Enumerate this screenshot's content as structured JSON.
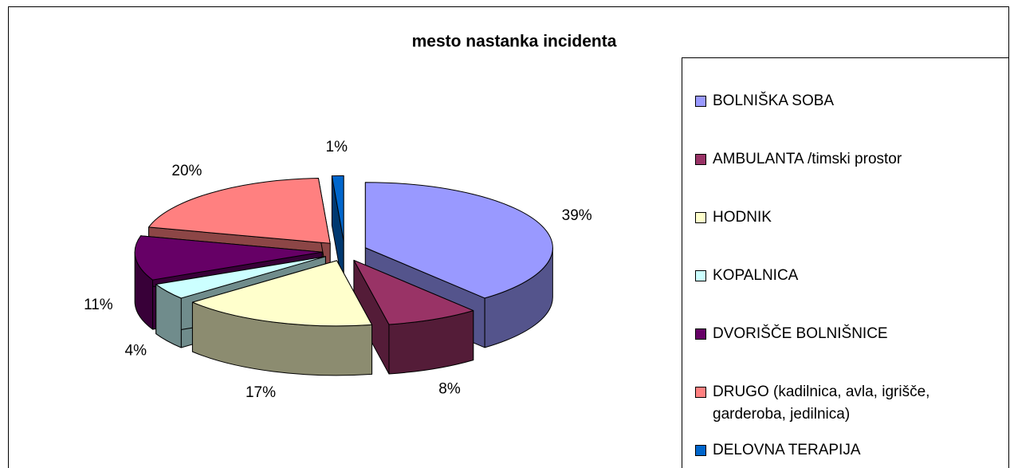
{
  "chart_data": {
    "type": "pie3d",
    "title": "mesto nastanka incidenta",
    "categories": [
      "BOLNIŠKA SOBA",
      "AMBULANTA /timski prostor",
      "HODNIK",
      "KOPALNICA",
      "DVORIŠČE BOLNIŠNICE",
      "DRUGO (kadilnica, avla, igrišče, garderoba, jedilnica)",
      "DELOVNA TERAPIJA"
    ],
    "values": [
      39,
      8,
      17,
      4,
      11,
      20,
      1
    ],
    "value_labels": [
      "39%",
      "8%",
      "17%",
      "4%",
      "11%",
      "20%",
      "1%"
    ],
    "colors": [
      "#9999ff",
      "#993366",
      "#ffffcc",
      "#ccffff",
      "#660066",
      "#ff8080",
      "#0066cc"
    ],
    "legend": "right"
  }
}
